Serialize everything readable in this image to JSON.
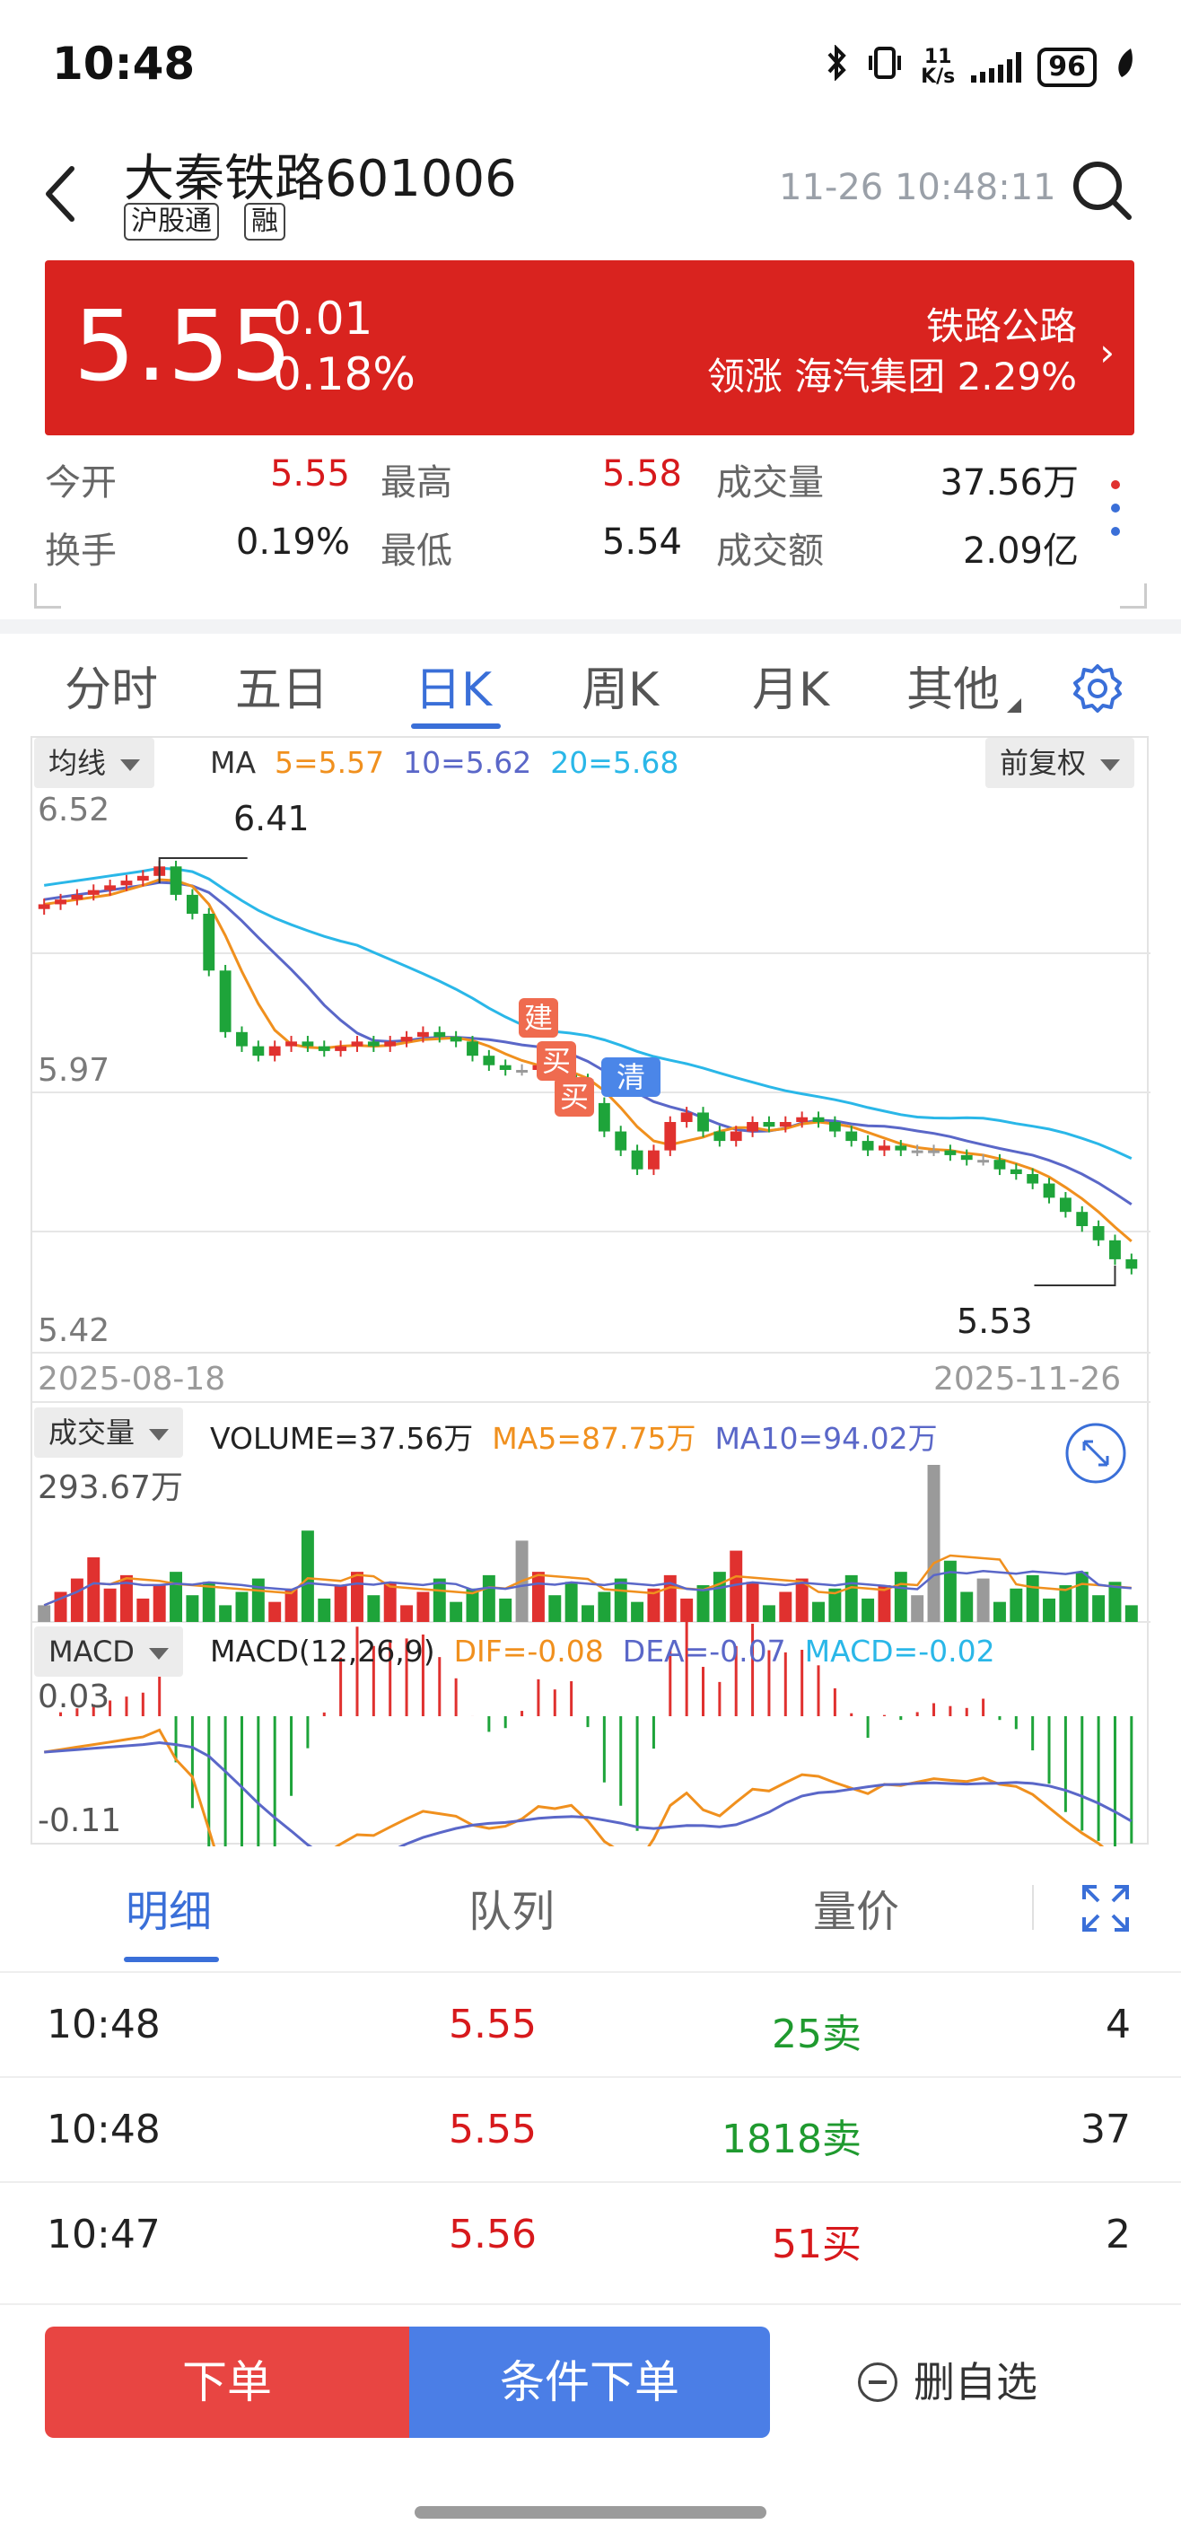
{
  "status_bar": {
    "time": "10:48",
    "net_speed_value": "11",
    "net_speed_unit": "K/s",
    "battery": "96"
  },
  "header": {
    "stock_name": "大秦铁路",
    "stock_code": "601006",
    "tag_hk_connect": "沪股通",
    "tag_margin": "融",
    "datetime": "11-26 10:48:11"
  },
  "price": {
    "last": "5.55",
    "change": "0.01",
    "change_pct": "0.18%",
    "sector": "铁路公路",
    "lead_label": "领涨",
    "lead_stock": "海汽集团",
    "lead_pct": "2.29%"
  },
  "quote": {
    "open_label": "今开",
    "open": "5.55",
    "high_label": "最高",
    "high": "5.58",
    "volume_label": "成交量",
    "volume": "37.56万",
    "turnover_label": "换手",
    "turnover": "0.19%",
    "low_label": "最低",
    "low": "5.54",
    "amount_label": "成交额",
    "amount": "2.09亿"
  },
  "period_tabs": [
    "分时",
    "五日",
    "日K",
    "周K",
    "月K",
    "其他"
  ],
  "active_period": "日K",
  "chart": {
    "ma_selector": "均线",
    "adjust_selector": "前复权",
    "ma_title": "MA",
    "ma5": "5=5.57",
    "ma10": "10=5.62",
    "ma20": "20=5.68",
    "y_top": "6.52",
    "y_mid": "5.97",
    "y_bottom": "5.42",
    "high_label": "6.41",
    "low_label": "5.53",
    "date_start": "2025-08-18",
    "date_end": "2025-11-26",
    "marker_build": "建",
    "marker_buy": "买",
    "marker_clear": "清",
    "vol_selector": "成交量",
    "vol_value": "VOLUME=37.56万",
    "vol_ma5": "MA5=87.75万",
    "vol_ma10": "MA10=94.02万",
    "vol_max": "293.67万",
    "macd_selector": "MACD",
    "macd_params": "MACD(12,26,9)",
    "dif": "DIF=-0.08",
    "dea": "DEA=-0.07",
    "macd": "MACD=-0.02",
    "macd_top": "0.03",
    "macd_bottom": "-0.11",
    "colors": {
      "up": "#e0312f",
      "down": "#1ea43a",
      "flat": "#9a9a9a",
      "ma5": "#f0901e",
      "ma10": "#5a67c8",
      "ma20": "#2ab7e8"
    }
  },
  "chart_data": {
    "type": "candlestick",
    "x_range": [
      "2025-08-18",
      "2025-11-26"
    ],
    "ylim": [
      5.42,
      6.52
    ],
    "period_high": 6.41,
    "period_low": 5.53,
    "last_ma": {
      "ma5": 5.57,
      "ma10": 5.62,
      "ma20": 5.68
    },
    "last_volume_wan": 37.56,
    "volume_ma5_wan": 87.75,
    "volume_ma10_wan": 94.02,
    "volume_max_wan": 293.67,
    "macd": {
      "dif": -0.08,
      "dea": -0.07,
      "hist": -0.02,
      "range": [
        -0.11,
        0.03
      ]
    },
    "close_approx": [
      6.32,
      6.33,
      6.34,
      6.35,
      6.36,
      6.37,
      6.38,
      6.4,
      6.34,
      6.3,
      6.18,
      6.05,
      6.02,
      6.0,
      6.02,
      6.03,
      6.02,
      6.01,
      6.02,
      6.03,
      6.02,
      6.03,
      6.04,
      6.05,
      6.04,
      6.03,
      6.0,
      5.98,
      5.97,
      5.97,
      5.98,
      5.96,
      5.95,
      5.9,
      5.84,
      5.8,
      5.76,
      5.8,
      5.86,
      5.88,
      5.84,
      5.82,
      5.84,
      5.86,
      5.85,
      5.86,
      5.87,
      5.86,
      5.84,
      5.82,
      5.8,
      5.81,
      5.8,
      5.8,
      5.8,
      5.79,
      5.78,
      5.78,
      5.76,
      5.75,
      5.73,
      5.7,
      5.67,
      5.64,
      5.61,
      5.57,
      5.55
    ]
  },
  "detail_tabs": [
    "明细",
    "队列",
    "量价"
  ],
  "trades": [
    {
      "time": "10:48",
      "price": "5.55",
      "volume": "25卖",
      "side": "sell",
      "count": "4"
    },
    {
      "time": "10:48",
      "price": "5.55",
      "volume": "1818卖",
      "side": "sell",
      "count": "37"
    },
    {
      "time": "10:47",
      "price": "5.56",
      "volume": "51买",
      "side": "buy",
      "count": "2"
    }
  ],
  "bottom": {
    "order": "下单",
    "conditional_order": "条件下单",
    "remove_watchlist": "删自选"
  }
}
